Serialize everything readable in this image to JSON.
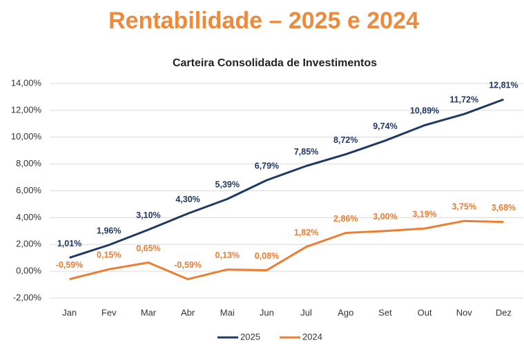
{
  "chart_data": {
    "type": "line",
    "title": "Rentabilidade – 2025 e 2024",
    "subtitle": "Carteira Consolidada de Investimentos",
    "categories": [
      "Jan",
      "Fev",
      "Mar",
      "Abr",
      "Mai",
      "Jun",
      "Jul",
      "Ago",
      "Set",
      "Out",
      "Nov",
      "Dez"
    ],
    "series": [
      {
        "name": "2025",
        "color": "#203864",
        "values": [
          1.01,
          1.96,
          3.1,
          4.3,
          5.39,
          6.79,
          7.85,
          8.72,
          9.74,
          10.89,
          11.72,
          12.81
        ],
        "value_labels": [
          "1,01%",
          "1,96%",
          "3,10%",
          "4,30%",
          "5,39%",
          "6,79%",
          "7,85%",
          "8,72%",
          "9,74%",
          "10,89%",
          "11,72%",
          "12,81%"
        ]
      },
      {
        "name": "2024",
        "color": "#ed7d31",
        "values": [
          -0.59,
          0.15,
          0.65,
          -0.59,
          0.13,
          0.08,
          1.82,
          2.86,
          3.0,
          3.19,
          3.75,
          3.68
        ],
        "value_labels": [
          "-0,59%",
          "0,15%",
          "0,65%",
          "-0,59%",
          "0,13%",
          "0,08%",
          "1,82%",
          "2,86%",
          "3,00%",
          "3,19%",
          "3,75%",
          "3,68%"
        ]
      }
    ],
    "ylim": [
      -2,
      14
    ],
    "yticks": [
      {
        "value": -2,
        "label": "-2,00%"
      },
      {
        "value": 0,
        "label": "0,00%"
      },
      {
        "value": 2,
        "label": "2,00%"
      },
      {
        "value": 4,
        "label": "4,00%"
      },
      {
        "value": 6,
        "label": "6,00%"
      },
      {
        "value": 8,
        "label": "8,00%"
      },
      {
        "value": 10,
        "label": "10,00%"
      },
      {
        "value": 12,
        "label": "12,00%"
      },
      {
        "value": 14,
        "label": "14,00%"
      }
    ],
    "grid": true,
    "legend": "bottom"
  }
}
